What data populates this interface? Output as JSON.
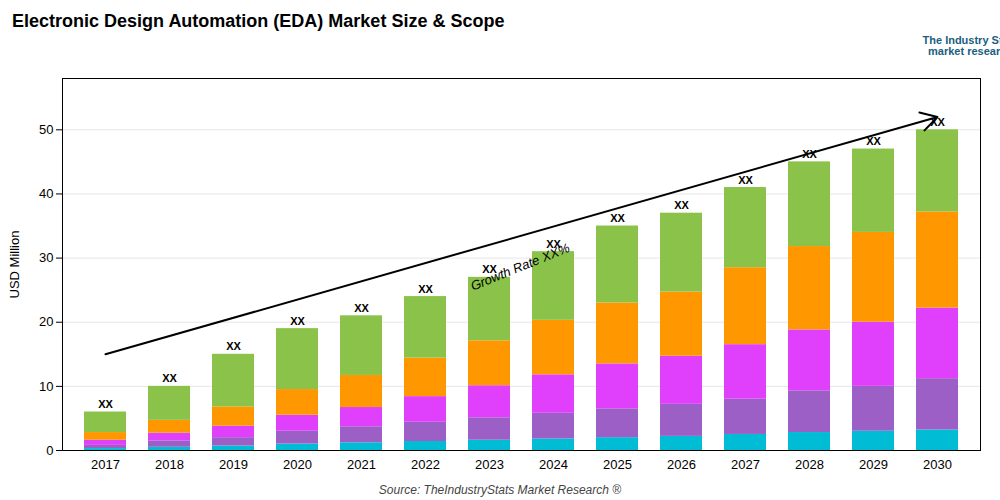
{
  "chart_data": {
    "type": "bar",
    "stacked": true,
    "title": "Electronic Design Automation (EDA) Market Size & Scope",
    "ylabel": "USD Million",
    "caption": "Source: TheIndustryStats Market Research ®",
    "categories": [
      "2017",
      "2018",
      "2019",
      "2020",
      "2021",
      "2022",
      "2023",
      "2024",
      "2025",
      "2026",
      "2027",
      "2028",
      "2029",
      "2030"
    ],
    "series": [
      {
        "color": "#00bcd4",
        "values": [
          0.3,
          0.5,
          0.7,
          1.0,
          1.2,
          1.4,
          1.6,
          1.8,
          2.0,
          2.2,
          2.5,
          2.8,
          3.0,
          3.2
        ]
      },
      {
        "color": "#9c5fc5",
        "values": [
          0.5,
          1.0,
          1.3,
          2.0,
          2.5,
          3.0,
          3.5,
          4.0,
          4.5,
          5.0,
          5.5,
          6.5,
          7.0,
          8.0
        ]
      },
      {
        "color": "#e040fb",
        "values": [
          0.8,
          1.2,
          1.8,
          2.5,
          3.0,
          4.0,
          5.0,
          6.0,
          7.0,
          7.5,
          8.5,
          9.5,
          10.0,
          11.0
        ]
      },
      {
        "color": "#ff9800",
        "values": [
          1.2,
          2.0,
          3.0,
          4.0,
          5.0,
          6.0,
          7.0,
          8.5,
          9.5,
          10.0,
          12.0,
          13.0,
          14.0,
          15.0
        ]
      },
      {
        "color": "#8bc34a",
        "values": [
          3.2,
          5.3,
          8.2,
          9.5,
          9.3,
          9.6,
          9.9,
          10.7,
          12.0,
          12.3,
          12.5,
          13.2,
          13.0,
          12.8
        ]
      }
    ],
    "ylim": [
      0,
      58
    ],
    "yticks": [
      0,
      10,
      20,
      30,
      40,
      50
    ],
    "grid": true,
    "annotations": [
      {
        "text": "XX",
        "x": "2017",
        "y": 6
      },
      {
        "text": "XX",
        "x": "2018",
        "y": 10
      },
      {
        "text": "XX",
        "x": "2019",
        "y": 15
      },
      {
        "text": "XX",
        "x": "2020",
        "y": 19
      },
      {
        "text": "XX",
        "x": "2021",
        "y": 21
      },
      {
        "text": "XX",
        "x": "2022",
        "y": 24
      },
      {
        "text": "XX",
        "x": "2023",
        "y": 27
      },
      {
        "text": "XX",
        "x": "2024",
        "y": 31
      },
      {
        "text": "XX",
        "x": "2025",
        "y": 35
      },
      {
        "text": "XX",
        "x": "2026",
        "y": 37
      },
      {
        "text": "XX",
        "x": "2027",
        "y": 41
      },
      {
        "text": "XX",
        "x": "2028",
        "y": 45
      },
      {
        "text": "XX",
        "x": "2029",
        "y": 47
      },
      {
        "text": "XX",
        "x": "2030",
        "y": 50
      },
      {
        "type": "arrow",
        "from": [
          "2017",
          15
        ],
        "to": [
          "2030",
          52
        ]
      },
      {
        "text": "Growth Rate XX%",
        "x": 2023.5,
        "y": 28
      },
      {
        "text": "The Industry Stats\nmarket research"
      }
    ]
  }
}
